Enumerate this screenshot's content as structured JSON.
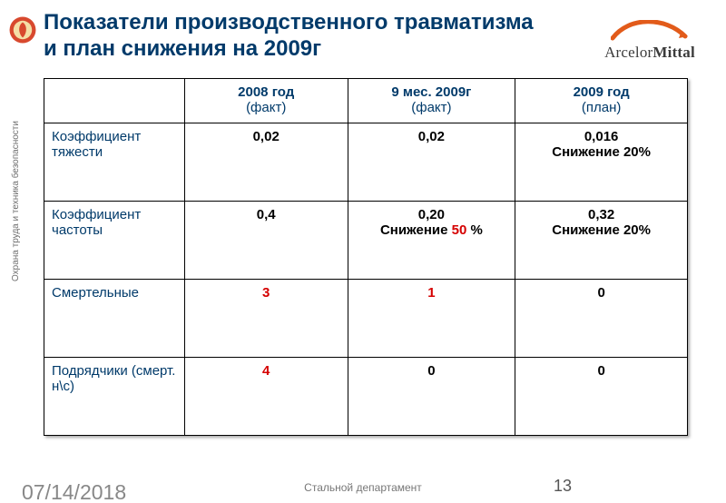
{
  "title": "Показатели   производственного травматизма и план снижения на 2009г",
  "logo_text_a": "Arcelor",
  "logo_text_b": "Mittal",
  "sidebar_text": "Охрана труда и техника безопасности",
  "footer": {
    "date": "07/14/2018",
    "center": "Стальной департамент",
    "page": "13"
  },
  "colors": {
    "heading": "#003a6a",
    "red": "#d50000",
    "logo_arc": "#e25b1a",
    "badge_outer": "#d8492e",
    "badge_inner": "#f5dfa6"
  },
  "table": {
    "columns": [
      {
        "year": "",
        "sub": ""
      },
      {
        "year": "2008 год",
        "sub": "(факт)"
      },
      {
        "year": "9 мес. 2009г",
        "sub": "(факт)"
      },
      {
        "year": "2009 год",
        "sub": "(план)"
      }
    ],
    "rows": [
      {
        "label": "Коэффициент тяжести",
        "c1": {
          "v": "0,02"
        },
        "c2": {
          "v": "0,02"
        },
        "c3": {
          "v": "0,016",
          "sub": "Снижение 20%"
        }
      },
      {
        "label": "Коэффициент частоты",
        "c1": {
          "v": "0,4"
        },
        "c2": {
          "v": "0,20",
          "sub_pre": "Снижение ",
          "sub_red": "50",
          "sub_post": " %"
        },
        "c3": {
          "v": "0,32",
          "sub": "Снижение 20%"
        }
      },
      {
        "label": "Смертельные",
        "c1": {
          "v": "3",
          "red": true
        },
        "c2": {
          "v": "1",
          "red": true
        },
        "c3": {
          "v": "0"
        }
      },
      {
        "label": "Подрядчики (смерт. н\\с)",
        "c1": {
          "v": "4",
          "red": true
        },
        "c2": {
          "v": "0"
        },
        "c3": {
          "v": "0"
        }
      }
    ]
  }
}
